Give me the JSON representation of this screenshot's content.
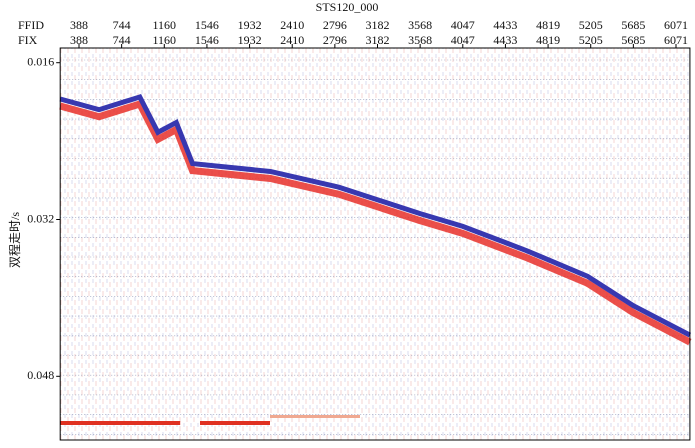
{
  "chart_data": {
    "type": "seismic",
    "title": "STS120_000",
    "top_rows": [
      "FFID",
      "FIX"
    ],
    "ffid_ticks": [
      388,
      744,
      1160,
      1546,
      1932,
      2410,
      2796,
      3182,
      3568,
      4047,
      4433,
      4819,
      5205,
      5685,
      6071
    ],
    "fix_ticks": [
      388,
      744,
      1160,
      1546,
      1932,
      2410,
      2796,
      3182,
      3568,
      4047,
      4433,
      4819,
      5205,
      5685,
      6071
    ],
    "xlim": [
      231,
      6197
    ],
    "ylabel": "双程走时/s",
    "ylim": [
      0.0145,
      0.0545
    ],
    "y_inverted": true,
    "yticks": [
      0.016,
      0.032,
      0.048
    ],
    "horizon": {
      "color": "#3838b0",
      "x": [
        231,
        555,
        921,
        1098,
        1269,
        1415,
        2165,
        2832,
        3568,
        4047,
        4630,
        5177,
        5685,
        6197
      ],
      "values": [
        0.0197,
        0.0208,
        0.0195,
        0.0231,
        0.0221,
        0.0263,
        0.0271,
        0.0287,
        0.0314,
        0.0327,
        0.0352,
        0.0378,
        0.0408,
        0.0438
      ]
    }
  }
}
